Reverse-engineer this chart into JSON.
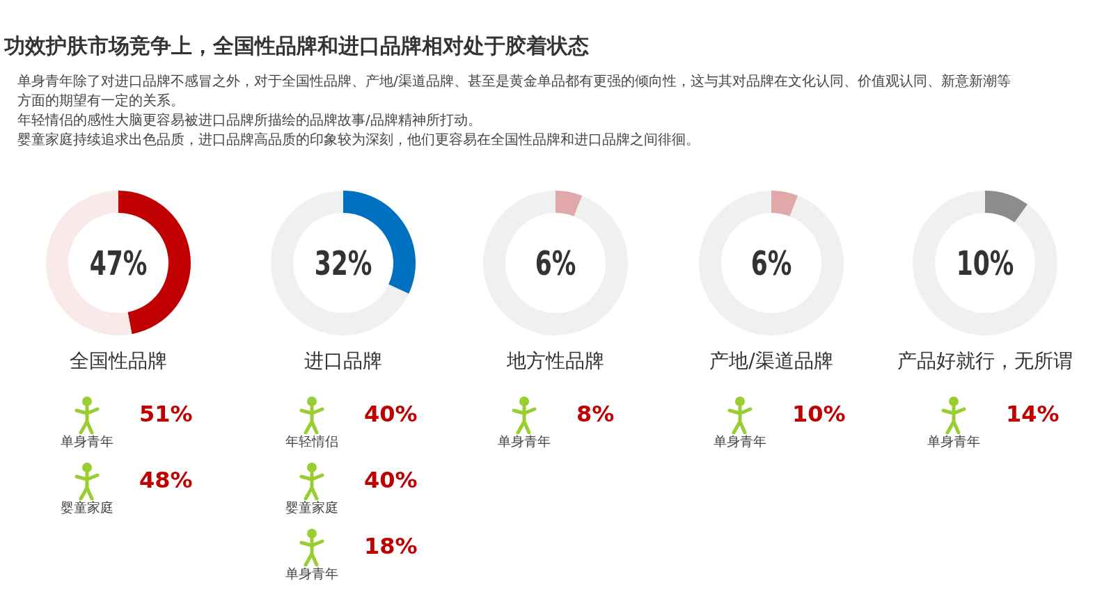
{
  "chart_data": [
    {
      "type": "other",
      "title": "功效护肤市场竞争上，全国性品牌和进口品牌相对处于胶着状态",
      "subtitle": "单身青年除了对进口品牌不感冒之外，对于全国性品牌、产地/渠道品牌、甚至是黄金单品都有更强的倾向性，这与其对品牌在文化认同、价值观认同、新意新潮等方面的期望有一定的关系。",
      "annotations": [
        "年轻情侣的感性大脑更容易被进口品牌所描绘的品牌故事/品牌精神所打动。",
        "婴童家庭持续追求出色品质，进口品牌高品质的印象较为深刻，他们更容易在全国性品牌和进口品牌之间徘徊。"
      ]
    },
    {
      "type": "donut",
      "title": "全国性品牌",
      "categories": [
        null,
        null
      ],
      "values": [
        47,
        53
      ],
      "colors": [
        "#c00000",
        "#f9e9e9"
      ],
      "annotations": [
        "47%",
        "单身青年",
        "51%",
        "婴童家庭",
        "48%"
      ]
    },
    {
      "type": "donut",
      "title": "进口品牌",
      "categories": [
        null,
        null
      ],
      "values": [
        32,
        68
      ],
      "colors": [
        "#0070c0",
        "#f0f0f0"
      ],
      "annotations": [
        "32%",
        "年轻情侣",
        "40%",
        "婴童家庭",
        "40%",
        "单身青年",
        "18%"
      ]
    },
    {
      "type": "donut",
      "title": "地方性品牌",
      "categories": [
        null,
        null
      ],
      "values": [
        6,
        94
      ],
      "colors": [
        "#e0a8a8",
        "#f0f0f0"
      ],
      "annotations": [
        "6%",
        "单身青年",
        "8%"
      ]
    },
    {
      "type": "donut",
      "title": "产地/渠道品牌",
      "categories": [
        null,
        null
      ],
      "values": [
        6,
        94
      ],
      "colors": [
        "#e0a8a8",
        "#f0f0f0"
      ],
      "annotations": [
        "6%",
        "单身青年",
        "10%"
      ]
    },
    {
      "type": "donut",
      "title": "产品好就行，无所谓",
      "categories": [
        null,
        null
      ],
      "values": [
        10,
        90
      ],
      "colors": [
        "#8c8c8c",
        "#f0f0f0"
      ],
      "annotations": [
        "10%",
        "单身青年",
        "14%"
      ]
    }
  ]
}
